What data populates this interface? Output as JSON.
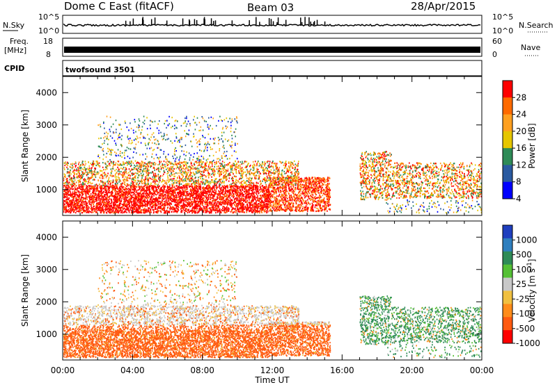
{
  "header": {
    "station": "Dome C East (fitACF)",
    "beam": "Beam 03",
    "date": "28/Apr/2015"
  },
  "strips": {
    "nsky_label": "N.Sky",
    "nsky_ticks": [
      "10^5",
      "10^0"
    ],
    "nsearch_label": "N.Search",
    "nsearch_ticks": [
      "10^5",
      "10^0"
    ],
    "freq_label_1": "Freq.",
    "freq_label_2": "[MHz]",
    "freq_ticks": [
      "18",
      "8"
    ],
    "nave_label": "Nave",
    "nave_ticks": [
      "60",
      "0"
    ],
    "cpid_label": "CPID",
    "cpid_value": "twofsound 3501"
  },
  "chart_data": [
    {
      "type": "heatmap",
      "panel": "power",
      "ylabel": "Slant Range [km]",
      "xlabel": "",
      "ylim": [
        200,
        4500
      ],
      "y_ticks": [
        1000,
        2000,
        3000,
        4000
      ],
      "colorbar_label": "Power [dB]",
      "colorbar_ticks": [
        "28",
        "24",
        "20",
        "16",
        "12",
        "8",
        "4"
      ],
      "colorbar_colors": [
        "#ff0000",
        "#ff6a00",
        "#ffa020",
        "#e6c600",
        "#2e8b57",
        "#2a5aa0",
        "#0000ff"
      ],
      "echo_regions": [
        {
          "t0": 0.0,
          "t1": 15.3,
          "r0": 300,
          "r1": 1300,
          "level": "high"
        },
        {
          "t0": 0.0,
          "t1": 13.5,
          "r0": 1300,
          "r1": 1900,
          "level": "mid"
        },
        {
          "t0": 2.0,
          "t1": 10.0,
          "r0": 1900,
          "r1": 3200,
          "level": "low"
        },
        {
          "t0": 17.0,
          "t1": 18.8,
          "r0": 700,
          "r1": 2200,
          "level": "mid"
        },
        {
          "t0": 18.8,
          "t1": 24.0,
          "r0": 700,
          "r1": 1800,
          "level": "mixed"
        }
      ]
    },
    {
      "type": "heatmap",
      "panel": "velocity",
      "ylabel": "Slant Range [km]",
      "xlabel": "Time UT",
      "ylim": [
        200,
        4500
      ],
      "y_ticks": [
        1000,
        2000,
        3000,
        4000
      ],
      "x_ticks": [
        "00:00",
        "04:00",
        "08:00",
        "12:00",
        "16:00",
        "20:00",
        "00:00"
      ],
      "colorbar_label": "Velocity [m s^-1]",
      "colorbar_ticks": [
        "1000",
        "500",
        "100",
        "25",
        "-25",
        "-100",
        "-500",
        "-1000"
      ],
      "colorbar_colors": [
        "#1f3fbf",
        "#2f7fbf",
        "#2e8b57",
        "#55c035",
        "#c8c8c8",
        "#f0c040",
        "#ff8c1a",
        "#ff5a10",
        "#ff0000"
      ]
    }
  ]
}
